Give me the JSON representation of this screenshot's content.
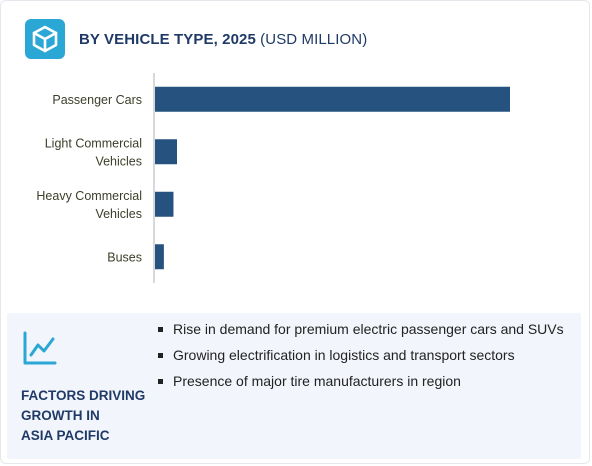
{
  "header": {
    "title_bold": "BY VEHICLE TYPE, 2025",
    "title_rest": " (USD MILLION)",
    "icon": "cube-icon"
  },
  "colors": {
    "bar": "#26527f",
    "axis": "#c9ccd1",
    "title": "#1f3a66",
    "panel_bg": "#f2f5fb"
  },
  "chart_data": {
    "type": "bar",
    "orientation": "horizontal",
    "categories": [
      "Passenger Cars",
      "Light Commercial Vehicles",
      "Heavy Commercial Vehicles",
      "Buses"
    ],
    "category_lines": [
      [
        "Passenger Cars"
      ],
      [
        "Light Commercial",
        "Vehicles"
      ],
      [
        "Heavy Commercial",
        "Vehicles"
      ],
      [
        "Buses"
      ]
    ],
    "values": [
      100,
      6.2,
      5.2,
      2.5
    ],
    "xlim": [
      0,
      120
    ],
    "grid": false,
    "legend": "none",
    "title": "",
    "xlabel": "",
    "ylabel": ""
  },
  "factors": {
    "icon": "line-chart-icon",
    "title": "FACTORS DRIVING\nGROWTH IN\nASIA PACIFIC",
    "items": [
      "Rise in demand for premium electric passenger cars and SUVs",
      "Growing electrification in logistics and transport sectors",
      "Presence of major tire manufacturers in region"
    ]
  }
}
